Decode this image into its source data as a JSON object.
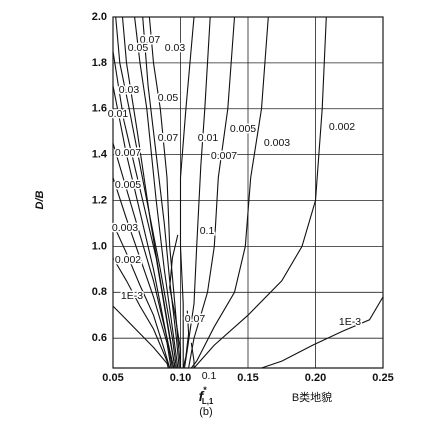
{
  "chart_data": {
    "type": "contour",
    "ylabel": "D/B",
    "xlabel": {
      "main": "f",
      "sup": "*",
      "sub": "L,1"
    },
    "caption": "(b)",
    "terrain": "B类地貌",
    "color": "#111111",
    "grid": true,
    "xlim": [
      0.05,
      0.25
    ],
    "ylim": [
      0.47,
      2.0
    ],
    "xticks": [
      0.05,
      {
        "value": 0.1,
        "label": "0.10"
      },
      0.15,
      {
        "value": 0.2,
        "label": "0.20"
      },
      0.25
    ],
    "yticks": [
      {
        "value": 2,
        "label": "2.0"
      },
      1.8,
      1.6,
      1.4,
      1.2,
      {
        "value": 1,
        "label": "1.0"
      },
      0.8,
      0.6
    ],
    "series": [
      {
        "name": "1E-3",
        "x": [
          0.25,
          0.24,
          0.22,
          0.198,
          0.175,
          0.16
        ],
        "y": [
          0.78,
          0.68,
          0.63,
          0.57,
          0.5,
          0.47
        ]
      },
      {
        "name": "0.002",
        "x": [
          0.208,
          0.205,
          0.2,
          0.19,
          0.175,
          0.15,
          0.125,
          0.11
        ],
        "y": [
          2.0,
          1.6,
          1.2,
          1.0,
          0.85,
          0.7,
          0.57,
          0.47
        ]
      },
      {
        "name": "0.003",
        "x": [
          0.165,
          0.16,
          0.152,
          0.148,
          0.14,
          0.125,
          0.112,
          0.108
        ],
        "y": [
          2.0,
          1.6,
          1.3,
          1.0,
          0.8,
          0.65,
          0.5,
          0.47
        ]
      },
      {
        "name": "0.005",
        "x": [
          0.14,
          0.135,
          0.128,
          0.125,
          0.12,
          0.11,
          0.106
        ],
        "y": [
          2.0,
          1.6,
          1.3,
          1.0,
          0.8,
          0.6,
          0.47
        ]
      },
      {
        "name": "0.007",
        "x": [
          0.122,
          0.118,
          0.115,
          0.112,
          0.11,
          0.105,
          0.103
        ],
        "y": [
          2.0,
          1.6,
          1.35,
          1.0,
          0.75,
          0.55,
          0.47
        ]
      },
      {
        "name": "0.01",
        "x": [
          0.11,
          0.104,
          0.1,
          0.1,
          0.102,
          0.102
        ],
        "y": [
          2.0,
          1.6,
          1.3,
          1.0,
          0.75,
          0.47
        ]
      },
      {
        "name": "0.03",
        "x": [
          0.077,
          0.08,
          0.085,
          0.09,
          0.092,
          0.095,
          0.098,
          0.1
        ],
        "y": [
          2.0,
          1.8,
          1.6,
          1.3,
          1.0,
          0.8,
          0.6,
          0.47
        ]
      },
      {
        "name": "0.05",
        "x": [
          0.066,
          0.07,
          0.075,
          0.082,
          0.088,
          0.095,
          0.098
        ],
        "y": [
          2.0,
          1.8,
          1.6,
          1.2,
          0.9,
          0.6,
          0.47
        ]
      },
      {
        "name": "0.07",
        "x": [
          0.057,
          0.06,
          0.068,
          0.078,
          0.088,
          0.096
        ],
        "y": [
          2.0,
          1.8,
          1.5,
          1.1,
          0.75,
          0.47
        ]
      },
      {
        "name": "0.07",
        "x": [
          0.072,
          0.076,
          0.082,
          0.088,
          0.092,
          0.097,
          0.099
        ],
        "y": [
          2.0,
          1.7,
          1.4,
          1.1,
          0.85,
          0.6,
          0.47
        ]
      },
      {
        "name": "0.05",
        "x": [
          0.052,
          0.055,
          0.062,
          0.075,
          0.085,
          0.094,
          0.097
        ],
        "y": [
          2.0,
          1.8,
          1.6,
          1.2,
          0.9,
          0.6,
          0.47
        ]
      },
      {
        "name": "0.03",
        "x": [
          0.05,
          0.058,
          0.072,
          0.082,
          0.092,
          0.096
        ],
        "y": [
          1.85,
          1.55,
          1.2,
          0.95,
          0.6,
          0.47
        ]
      },
      {
        "name": "0.01",
        "x": [
          0.05,
          0.06,
          0.07,
          0.08,
          0.09,
          0.095
        ],
        "y": [
          1.7,
          1.4,
          1.15,
          0.9,
          0.6,
          0.47
        ]
      },
      {
        "name": "0.007",
        "x": [
          0.05,
          0.06,
          0.07,
          0.08,
          0.09,
          0.094
        ],
        "y": [
          1.45,
          1.25,
          1.05,
          0.85,
          0.6,
          0.47
        ]
      },
      {
        "name": "0.005",
        "x": [
          0.05,
          0.06,
          0.07,
          0.08,
          0.09,
          0.093
        ],
        "y": [
          1.3,
          1.12,
          0.95,
          0.78,
          0.58,
          0.47
        ]
      },
      {
        "name": "0.003",
        "x": [
          0.05,
          0.06,
          0.07,
          0.08,
          0.088,
          0.092
        ],
        "y": [
          1.1,
          0.97,
          0.83,
          0.7,
          0.55,
          0.47
        ]
      },
      {
        "name": "0.002",
        "x": [
          0.05,
          0.06,
          0.07,
          0.08,
          0.09,
          0.092
        ],
        "y": [
          0.95,
          0.85,
          0.74,
          0.64,
          0.5,
          0.47
        ]
      },
      {
        "name": "1E-3",
        "x": [
          0.05,
          0.06,
          0.07,
          0.08,
          0.09,
          0.091
        ],
        "y": [
          0.74,
          0.68,
          0.62,
          0.56,
          0.49,
          0.47
        ]
      },
      {
        "name": "0.1",
        "x": [
          0.098,
          0.094,
          0.092,
          0.096,
          0.1,
          0.1
        ],
        "y": [
          1.05,
          0.95,
          0.82,
          0.7,
          0.55,
          0.47
        ]
      },
      {
        "name": "0.07",
        "x": [
          0.105,
          0.106,
          0.104,
          0.102
        ],
        "y": [
          0.72,
          0.62,
          0.52,
          0.47
        ]
      },
      {
        "name": "0.1",
        "x": [
          0.108,
          0.11,
          0.11
        ],
        "y": [
          0.58,
          0.5,
          0.47
        ]
      }
    ]
  }
}
